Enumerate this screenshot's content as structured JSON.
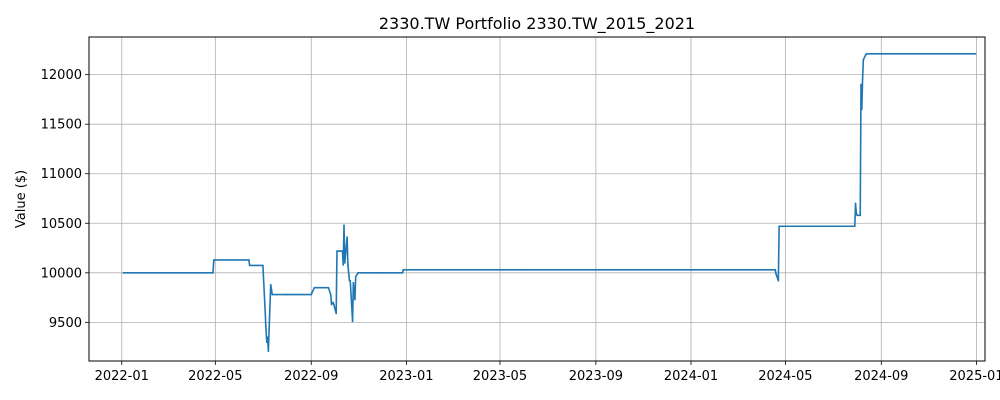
{
  "chart_data": {
    "type": "line",
    "title": "2330.TW Portfolio 2330.TW_2015_2021",
    "xlabel": "",
    "ylabel": "Value ($)",
    "grid": true,
    "x_range": [
      "2021-11-20",
      "2025-01-12"
    ],
    "ylim": [
      9110,
      12380
    ],
    "x_ticks": [
      "2022-01",
      "2022-05",
      "2022-09",
      "2023-01",
      "2023-05",
      "2023-09",
      "2024-01",
      "2024-05",
      "2024-09",
      "2025-01"
    ],
    "y_ticks": [
      9500,
      10000,
      10500,
      11000,
      11500,
      12000
    ],
    "colors": {
      "series": "#1f77b4",
      "grid": "#b0b0b0"
    },
    "series": [
      {
        "x": [
          "2022-01-03",
          "2022-04-28",
          "2022-04-29",
          "2022-06-13",
          "2022-06-14",
          "2022-07-01",
          "2022-07-04",
          "2022-07-05",
          "2022-07-06",
          "2022-07-07",
          "2022-07-08",
          "2022-07-11",
          "2022-07-12",
          "2022-07-13",
          "2022-08-01",
          "2022-09-01",
          "2022-09-02",
          "2022-09-05",
          "2022-09-23",
          "2022-09-26",
          "2022-09-27",
          "2022-09-28",
          "2022-09-29",
          "2022-09-30",
          "2022-10-03",
          "2022-10-04",
          "2022-10-07",
          "2022-10-11",
          "2022-10-12",
          "2022-10-13",
          "2022-10-14",
          "2022-10-17",
          "2022-10-18",
          "2022-10-20",
          "2022-10-21",
          "2022-10-24",
          "2022-10-25",
          "2022-10-27",
          "2022-10-28",
          "2022-10-31",
          "2022-11-01",
          "2022-12-01",
          "2022-12-27",
          "2022-12-28",
          "2023-06-01",
          "2024-01-02",
          "2024-04-18",
          "2024-04-19",
          "2024-04-22",
          "2024-04-23",
          "2024-05-15",
          "2024-07-26",
          "2024-07-29",
          "2024-07-30",
          "2024-07-31",
          "2024-08-01",
          "2024-08-02",
          "2024-08-05",
          "2024-08-06",
          "2024-08-07",
          "2024-08-08",
          "2024-08-09",
          "2024-08-12",
          "2024-08-13",
          "2024-09-01",
          "2024-12-31"
        ],
        "values": [
          10000,
          10000,
          10130,
          10130,
          10075,
          10075,
          9600,
          9420,
          9300,
          9350,
          9210,
          9880,
          9830,
          9780,
          9780,
          9780,
          9800,
          9850,
          9850,
          9780,
          9680,
          9700,
          9700,
          9680,
          9590,
          10220,
          10220,
          10220,
          10080,
          10480,
          10100,
          10360,
          10080,
          9920,
          9920,
          9510,
          9900,
          9730,
          9960,
          10000,
          10000,
          10000,
          10000,
          10030,
          10030,
          10030,
          10030,
          9990,
          9920,
          10470,
          10470,
          10470,
          10470,
          10700,
          10600,
          10580,
          10580,
          10580,
          11900,
          11650,
          11950,
          12150,
          12200,
          12210,
          12210,
          12210
        ]
      }
    ]
  }
}
